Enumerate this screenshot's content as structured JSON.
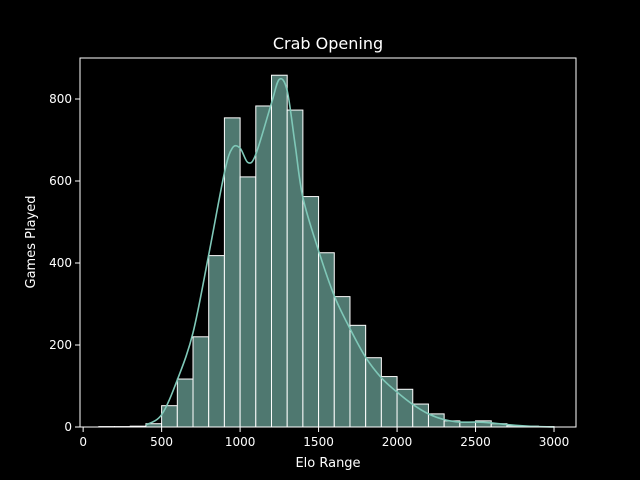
{
  "chart_data": {
    "type": "bar",
    "title": "Crab Opening",
    "xlabel": "Elo Range",
    "ylabel": "Games Played",
    "xlim": [
      -20,
      3140
    ],
    "ylim": [
      0,
      900
    ],
    "xticks": [
      0,
      500,
      1000,
      1500,
      2000,
      2500,
      3000
    ],
    "yticks": [
      0,
      200,
      400,
      600,
      800
    ],
    "grid": false,
    "legend": "none",
    "bin_edges": [
      100,
      200,
      300,
      400,
      500,
      600,
      700,
      800,
      900,
      1000,
      1100,
      1200,
      1300,
      1400,
      1500,
      1600,
      1700,
      1800,
      1900,
      2000,
      2100,
      2200,
      2300,
      2400,
      2500,
      2600,
      2700,
      2800,
      2900,
      3000
    ],
    "counts": [
      1,
      1,
      2,
      8,
      52,
      117,
      220,
      418,
      754,
      610,
      783,
      858,
      773,
      562,
      425,
      318,
      248,
      169,
      123,
      92,
      56,
      32,
      15,
      12,
      15,
      8,
      3,
      2,
      1
    ],
    "kde": {
      "x": [
        400,
        500,
        600,
        700,
        800,
        900,
        950,
        1000,
        1050,
        1100,
        1200,
        1250,
        1300,
        1350,
        1400,
        1500,
        1600,
        1700,
        1800,
        1900,
        2000,
        2100,
        2200,
        2300,
        2400,
        2500,
        2600,
        2700,
        2800,
        2900,
        3000
      ],
      "y": [
        5,
        30,
        115,
        230,
        420,
        620,
        680,
        680,
        645,
        665,
        790,
        848,
        820,
        690,
        560,
        430,
        320,
        240,
        170,
        120,
        85,
        55,
        32,
        18,
        12,
        12,
        10,
        6,
        3,
        1,
        0
      ]
    },
    "colors": {
      "bar_fill": "#4f7870",
      "bar_edge": "#ffffff",
      "kde_line": "#7fc8b8",
      "axes": "#ffffff",
      "background": "#000000"
    }
  }
}
